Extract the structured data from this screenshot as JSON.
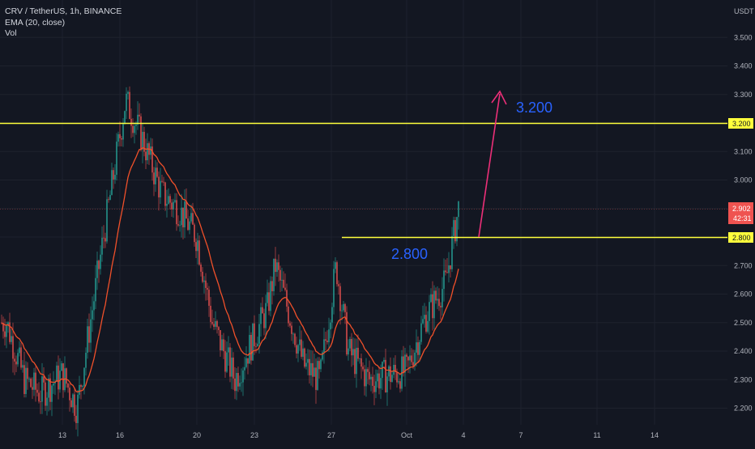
{
  "legend": {
    "symbol_line": "CRV / TetherUS, 1h, BINANCE",
    "ema_line": "EMA (20, close)",
    "vol_line": "Vol"
  },
  "price_axis": {
    "currency": "USDT",
    "ticks": [
      "3.500",
      "3.400",
      "3.300",
      "3.200",
      "3.100",
      "3.000",
      "2.900",
      "2.800",
      "2.700",
      "2.600",
      "2.500",
      "2.400",
      "2.300",
      "2.200"
    ]
  },
  "time_axis": {
    "ticks": [
      "13",
      "16",
      "20",
      "23",
      "27",
      "Oct",
      "4",
      "7",
      "11",
      "14"
    ]
  },
  "annotations": {
    "level_high_label": "3.200",
    "level_low_label": "2.800",
    "current_price_label": "2.902",
    "countdown_label": "42:31",
    "level_high_tag": "3.200",
    "level_low_tag": "2.800"
  },
  "colors": {
    "background": "#131722",
    "up_candle": "#26a69a",
    "down_candle": "#ef5350",
    "ema": "#f0502a",
    "level_line": "#ffff3c",
    "level_text": "#2962ff",
    "arrow": "#ec2f78",
    "price_tag": "#ef5350"
  },
  "chart_data": {
    "type": "candlestick",
    "title": "CRV / TetherUS, 1h, BINANCE",
    "ylabel": "USDT",
    "ylim": [
      2.15,
      3.58
    ],
    "x_categories": [
      "13",
      "16",
      "20",
      "23",
      "27",
      "Oct",
      "4",
      "7",
      "11",
      "14"
    ],
    "indicators": [
      "EMA (20, close)",
      "Vol"
    ],
    "price_path_waypoints": [
      {
        "x": "10",
        "close": 2.5
      },
      {
        "x": "11",
        "close": 2.3
      },
      {
        "x": "12",
        "close": 2.25
      },
      {
        "x": "13",
        "close": 2.32
      },
      {
        "x": "14",
        "close": 2.2
      },
      {
        "x": "15",
        "close": 2.75
      },
      {
        "x": "16",
        "close": 3.28
      },
      {
        "x": "17",
        "close": 3.15
      },
      {
        "x": "18",
        "close": 2.95
      },
      {
        "x": "19",
        "close": 2.9
      },
      {
        "x": "20",
        "close": 2.8
      },
      {
        "x": "21",
        "close": 2.5
      },
      {
        "x": "22",
        "close": 2.3
      },
      {
        "x": "23",
        "close": 2.45
      },
      {
        "x": "24",
        "close": 2.55
      },
      {
        "x": "25",
        "close": 2.7
      },
      {
        "x": "26",
        "close": 2.35
      },
      {
        "x": "27",
        "close": 2.3
      },
      {
        "x": "28",
        "close": 2.7
      },
      {
        "x": "29",
        "close": 2.4
      },
      {
        "x": "30",
        "close": 2.3
      },
      {
        "x": "Oct",
        "close": 2.33
      },
      {
        "x": "2",
        "close": 2.52
      },
      {
        "x": "3",
        "close": 2.64
      },
      {
        "x": "3 (last)",
        "close": 2.902
      }
    ],
    "levels": [
      {
        "label": "3.200",
        "value": 3.2
      },
      {
        "label": "2.800",
        "value": 2.8
      }
    ],
    "last_price": 2.902,
    "grid": true
  }
}
